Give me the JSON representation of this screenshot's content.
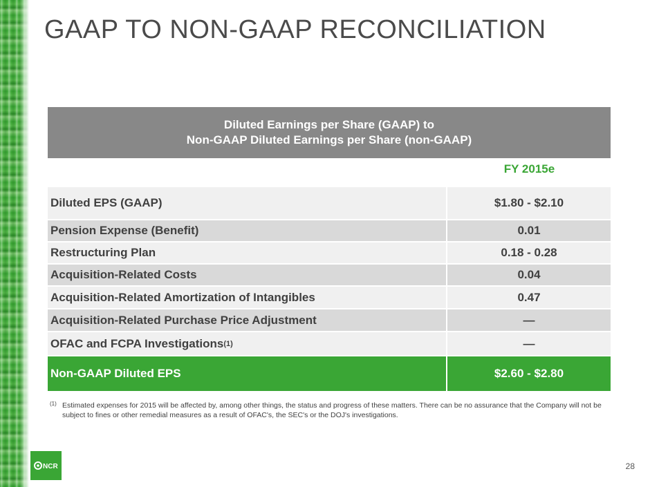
{
  "slide": {
    "title": "GAAP TO NON-GAAP RECONCILIATION",
    "page_number": "28",
    "accent_color": "#3aa635",
    "header_color": "#888888",
    "logo": {
      "icon": "ncr-logo-icon",
      "text": "NCR"
    }
  },
  "table": {
    "header_line1": "Diluted Earnings per Share (GAAP) to",
    "header_line2": "Non-GAAP Diluted Earnings per Share (non-GAAP)",
    "column_header": "FY 2015e",
    "rows": [
      {
        "label": "Diluted EPS (GAAP)",
        "value": "$1.80 - $2.10"
      },
      {
        "label": "Pension Expense (Benefit)",
        "value": "0.01"
      },
      {
        "label": "Restructuring Plan",
        "value": "0.18 - 0.28"
      },
      {
        "label": "Acquisition-Related Costs",
        "value": "0.04"
      },
      {
        "label": "Acquisition-Related Amortization of Intangibles",
        "value": "0.47"
      },
      {
        "label": "Acquisition-Related Purchase Price Adjustment",
        "value": "—"
      },
      {
        "label": "OFAC and FCPA Investigations",
        "label_sup": "(1)",
        "value": "—"
      }
    ],
    "total": {
      "label": "Non-GAAP Diluted EPS",
      "value": "$2.60 - $2.80"
    }
  },
  "footnote": {
    "marker": "(1)",
    "text": "Estimated expenses for 2015 will be affected by, among other things, the status and progress of these matters.  There can be no assurance that the Company will not be subject to fines or other remedial measures as a result of OFAC's, the SEC's or the DOJ's investigations."
  }
}
